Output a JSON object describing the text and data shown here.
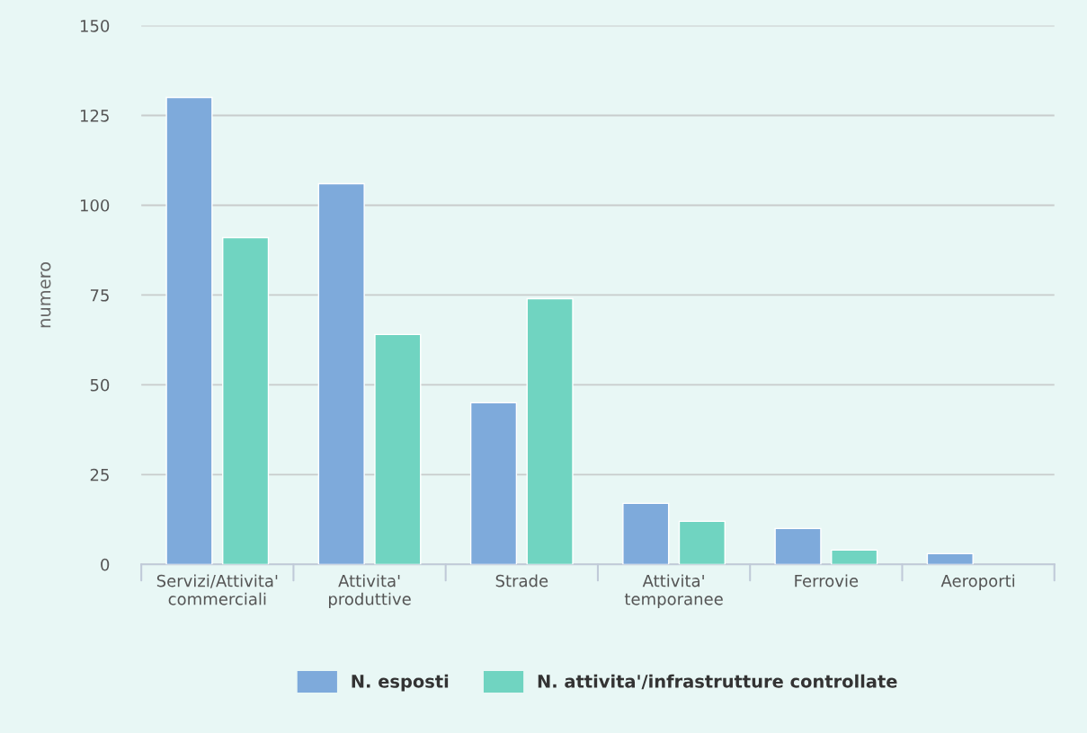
{
  "chart_data": {
    "type": "bar",
    "ylabel": "numero",
    "categories": [
      "Servizi/Attivita'\ncommerciali",
      "Attivita'\nproduttive",
      "Strade",
      "Attivita'\ntemporanee",
      "Ferrovie",
      "Aeroporti"
    ],
    "series": [
      {
        "name": "N. esposti",
        "color": "#7eaadb",
        "values": [
          130,
          106,
          45,
          17,
          10,
          3
        ]
      },
      {
        "name": "N. attivita'/infrastrutture controllate",
        "color": "#70d4c1",
        "values": [
          91,
          64,
          74,
          12,
          4,
          0
        ]
      }
    ],
    "ylim": [
      0,
      150
    ],
    "yticks": [
      0,
      25,
      50,
      75,
      100,
      125,
      150
    ],
    "grid": "y",
    "legend": "bottom"
  }
}
